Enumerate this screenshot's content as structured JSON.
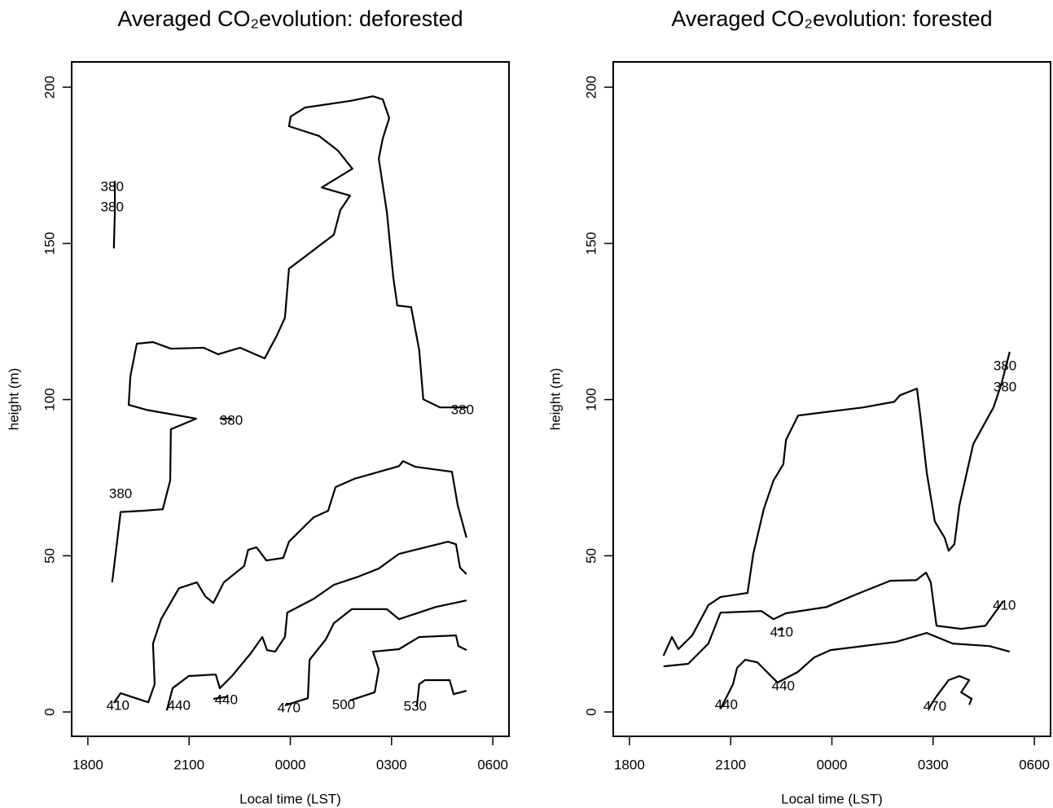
{
  "chart_data": [
    {
      "type": "contour",
      "title": "Averaged CO₂evolution: deforested",
      "x_label": "Local time (LST)",
      "y_label": "height (m)",
      "xlim": [
        17.52,
        30.48
      ],
      "ylim": [
        -7.8,
        208.1
      ],
      "xticks": [
        {
          "value": 18,
          "label": "1800"
        },
        {
          "value": 21,
          "label": "2100"
        },
        {
          "value": 24,
          "label": "0000"
        },
        {
          "value": 27,
          "label": "0300"
        },
        {
          "value": 30,
          "label": "0600"
        }
      ],
      "yticks": [
        0,
        50,
        100,
        150,
        200
      ],
      "color": "#000000",
      "contours": [
        {
          "x": [
            18.72,
            18.87,
            18.97,
            19.62,
            20.22,
            20.44,
            20.46,
            21.21,
            19.74,
            19.21,
            19.26,
            19.45,
            19.93,
            20.46,
            21.43,
            21.86,
            22.51,
            23.24,
            23.6,
            23.84,
            23.96,
            24.44,
            25.29,
            25.48,
            25.77,
            24.93,
            25.84,
            25.41,
            24.85,
            23.96,
            24.01,
            24.44,
            25.77,
            26.45,
            26.74,
            26.93,
            26.74,
            26.62,
            26.86,
            27.05,
            27.17,
            27.58,
            27.82,
            27.94,
            28.43,
            29.27
          ],
          "y": [
            41.5,
            54.8,
            64.0,
            64.4,
            64.9,
            74.1,
            90.5,
            93.9,
            96.7,
            98.3,
            107.4,
            117.9,
            118.4,
            116.3,
            116.6,
            114.5,
            116.6,
            113.2,
            120.5,
            126.2,
            141.9,
            145.8,
            152.8,
            160.6,
            165.3,
            167.9,
            173.9,
            179.7,
            184.4,
            187.5,
            190.6,
            193.5,
            195.6,
            197.1,
            196.1,
            190.1,
            183.6,
            177.1,
            160.1,
            139.2,
            130.1,
            129.6,
            115.8,
            100.1,
            97.5,
            97.5
          ]
        },
        {
          "x": [
            18.77,
            18.8,
            18.8
          ],
          "y": [
            148.4,
            160.1,
            170.0
          ]
        },
        {
          "x": [
            21.91,
            22.27
          ],
          "y": [
            93.9,
            93.9
          ]
        },
        {
          "x": [
            18.77,
            18.97,
            19.79,
            19.98,
            19.93,
            20.17,
            20.7,
            21.23,
            21.48,
            21.72,
            22.03,
            22.63,
            22.75,
            23.0,
            23.29,
            23.79,
            23.96,
            24.69,
            25.12,
            25.34,
            25.89,
            27.22,
            27.34,
            27.7,
            28.79,
            28.96,
            29.22
          ],
          "y": [
            2.9,
            6.0,
            3.1,
            8.9,
            21.9,
            29.7,
            39.6,
            41.5,
            37.0,
            34.9,
            41.5,
            46.7,
            51.9,
            52.7,
            48.5,
            49.3,
            54.5,
            62.3,
            64.4,
            72.0,
            74.6,
            78.7,
            80.3,
            78.5,
            76.9,
            66.2,
            55.8
          ]
        },
        {
          "x": [
            20.34,
            20.51,
            20.99,
            21.79,
            21.91,
            22.27,
            22.83,
            23.17,
            23.31,
            23.55,
            23.84,
            23.91,
            24.69,
            25.29,
            26.01,
            26.62,
            27.22,
            28.67,
            28.91,
            29.03,
            29.22
          ],
          "y": [
            0.5,
            7.6,
            11.5,
            12.0,
            7.6,
            11.5,
            18.8,
            24.0,
            19.8,
            19.3,
            24.0,
            31.8,
            36.2,
            40.7,
            43.3,
            45.9,
            50.6,
            54.5,
            53.7,
            46.2,
            44.1
          ]
        },
        {
          "x": [
            21.72,
            22.15
          ],
          "y": [
            4.2,
            4.9
          ]
        },
        {
          "x": [
            23.84,
            24.52,
            24.57,
            25.05,
            25.29,
            25.82,
            26.86,
            27.22,
            28.31,
            29.22
          ],
          "y": [
            2.1,
            4.4,
            16.7,
            23.2,
            28.4,
            32.9,
            32.9,
            29.7,
            33.6,
            35.7
          ]
        },
        {
          "x": [
            25.77,
            26.5,
            26.62,
            26.45,
            27.22,
            27.82,
            28.91,
            28.98,
            29.22
          ],
          "y": [
            3.7,
            6.3,
            13.6,
            19.3,
            20.1,
            24.0,
            24.5,
            21.1,
            19.8
          ]
        },
        {
          "x": [
            27.75,
            27.82,
            27.99,
            28.72,
            28.84,
            29.22
          ],
          "y": [
            1.8,
            8.9,
            10.2,
            10.2,
            5.7,
            6.8
          ]
        }
      ],
      "labels": [
        {
          "value": 380,
          "x": 18.72,
          "y": 167.9
        },
        {
          "value": 380,
          "x": 18.72,
          "y": 161.4
        },
        {
          "value": 380,
          "x": 22.25,
          "y": 93.1
        },
        {
          "value": 380,
          "x": 18.97,
          "y": 69.6
        },
        {
          "value": 380,
          "x": 29.1,
          "y": 96.5
        },
        {
          "value": 410,
          "x": 18.89,
          "y": 1.8
        },
        {
          "value": 440,
          "x": 20.7,
          "y": 1.8
        },
        {
          "value": 440,
          "x": 22.1,
          "y": 3.7
        },
        {
          "value": 470,
          "x": 23.96,
          "y": 1.0
        },
        {
          "value": 500,
          "x": 25.58,
          "y": 2.1
        },
        {
          "value": 530,
          "x": 27.7,
          "y": 1.6
        }
      ]
    },
    {
      "type": "contour",
      "title": "Averaged CO₂evolution: forested",
      "x_label": "Local time (LST)",
      "y_label": "height (m)",
      "xlim": [
        17.52,
        30.48
      ],
      "ylim": [
        -7.8,
        208.1
      ],
      "xticks": [
        {
          "value": 18,
          "label": "1800"
        },
        {
          "value": 21,
          "label": "2100"
        },
        {
          "value": 24,
          "label": "0000"
        },
        {
          "value": 27,
          "label": "0300"
        },
        {
          "value": 30,
          "label": "0600"
        }
      ],
      "yticks": [
        0,
        50,
        100,
        150,
        200
      ],
      "color": "#000000",
      "contours": [
        {
          "x": [
            19.01,
            19.26,
            19.45,
            19.86,
            20.34,
            20.7,
            21.5,
            21.67,
            21.98,
            22.27,
            22.56,
            22.64,
            23.0,
            24.93,
            25.85,
            26.02,
            26.52,
            26.62,
            26.81,
            27.05,
            27.34,
            27.46,
            27.63,
            27.78,
            28.19,
            28.79,
            29.03,
            29.27
          ],
          "y": [
            18.0,
            24.0,
            20.1,
            24.5,
            34.2,
            36.8,
            38.1,
            50.6,
            64.9,
            74.1,
            79.3,
            87.1,
            94.9,
            97.5,
            99.3,
            101.4,
            103.5,
            94.9,
            76.7,
            61.0,
            55.8,
            51.6,
            53.7,
            66.2,
            85.8,
            97.5,
            105.3,
            115.3
          ]
        },
        {
          "x": [
            19.01,
            19.74,
            20.34,
            20.7,
            21.91,
            22.27,
            22.64,
            23.84,
            24.69,
            25.73,
            26.5,
            26.79,
            26.93,
            27.1,
            27.83,
            28.55,
            29.08
          ],
          "y": [
            14.6,
            15.4,
            21.9,
            31.8,
            32.3,
            29.7,
            31.6,
            33.6,
            37.5,
            42.0,
            42.2,
            44.6,
            41.5,
            27.6,
            26.6,
            27.6,
            35.5
          ]
        },
        {
          "x": [
            22.39,
            22.56
          ],
          "y": [
            26.3,
            26.6
          ]
        },
        {
          "x": [
            20.7,
            21.07,
            21.19,
            21.43,
            21.79,
            22.39,
            22.99,
            23.48,
            23.96,
            25.89,
            26.81,
            27.58,
            28.67,
            29.27
          ],
          "y": [
            1.0,
            8.9,
            14.1,
            16.7,
            15.9,
            9.4,
            12.8,
            17.5,
            19.8,
            22.4,
            25.3,
            21.9,
            21.1,
            19.3
          ]
        },
        {
          "x": [
            26.86,
            27.1,
            27.46,
            27.78,
            28.07,
            27.83,
            28.14,
            28.07
          ],
          "y": [
            1.0,
            5.0,
            10.2,
            11.5,
            10.2,
            6.3,
            4.2,
            2.3
          ]
        }
      ],
      "labels": [
        {
          "value": 380,
          "x": 29.13,
          "y": 110.6
        },
        {
          "value": 380,
          "x": 29.13,
          "y": 103.8
        },
        {
          "value": 410,
          "x": 22.51,
          "y": 25.3
        },
        {
          "value": 410,
          "x": 29.11,
          "y": 33.9
        },
        {
          "value": 440,
          "x": 20.87,
          "y": 2.1
        },
        {
          "value": 440,
          "x": 22.56,
          "y": 8.1
        },
        {
          "value": 470,
          "x": 27.05,
          "y": 1.6
        }
      ]
    }
  ]
}
